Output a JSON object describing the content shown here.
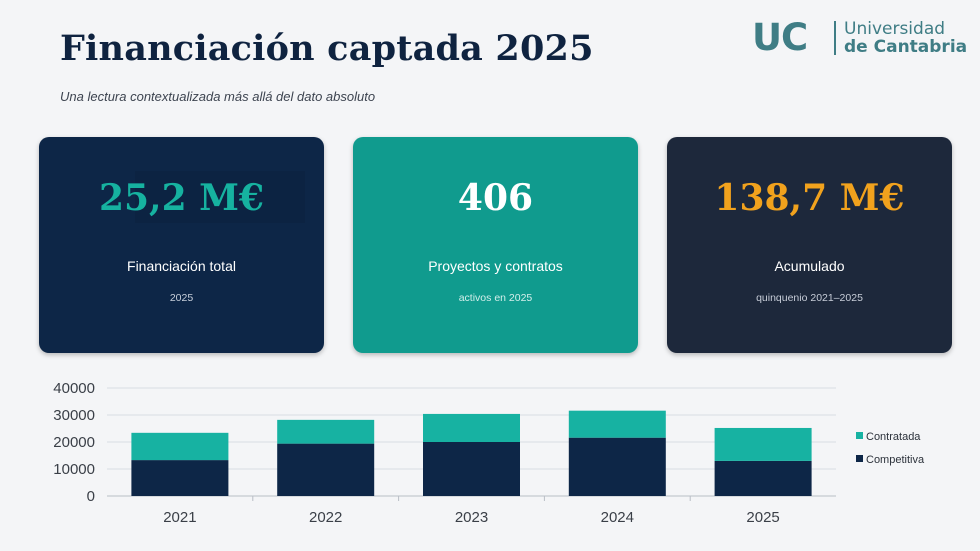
{
  "header": {
    "title": "Financiación captada 2025",
    "subtitle": "Una lectura contextualizada más allá del dato absoluto"
  },
  "logo": {
    "mark": "UC",
    "line1": "Universidad",
    "line2": "de Cantabria"
  },
  "cards": [
    {
      "value": "25,2 M€",
      "label": "Financiación total",
      "note": "2025",
      "value_color": "#16b2a0",
      "bg": "#0d2647"
    },
    {
      "value": "406",
      "label": "Proyectos y contratos",
      "note": "activos en 2025",
      "value_color": "#ffffff",
      "bg": "#109b8e"
    },
    {
      "value": "138,7 M€",
      "label": "Acumulado",
      "note": "quinquenio 2021–2025",
      "value_color": "#f1a21d",
      "bg": "#1d283b"
    }
  ],
  "chart_data": {
    "type": "bar",
    "stacked": true,
    "categories": [
      "2021",
      "2022",
      "2023",
      "2024",
      "2025"
    ],
    "series": [
      {
        "name": "Competitiva",
        "color": "#0d2647",
        "values": [
          13300,
          19400,
          20000,
          21600,
          13000
        ]
      },
      {
        "name": "Contratada",
        "color": "#17b2a2",
        "values": [
          10100,
          8800,
          10400,
          10000,
          12200
        ]
      }
    ],
    "ylim": [
      0,
      40000
    ],
    "yticks": [
      "0",
      "10000",
      "20000",
      "30000",
      "40000"
    ],
    "grid": true,
    "legend_position": "right",
    "title": "",
    "xlabel": "",
    "ylabel": ""
  }
}
